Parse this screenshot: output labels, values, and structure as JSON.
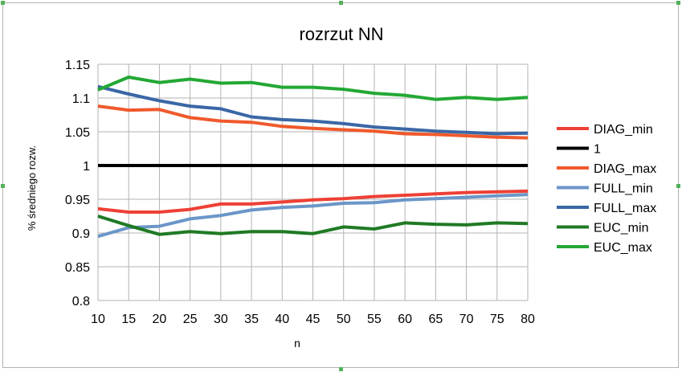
{
  "chart_data": {
    "type": "line",
    "title": "rozrzut NN",
    "xlabel": "n",
    "ylabel": "% średniego rozw.",
    "x": [
      10,
      15,
      20,
      25,
      30,
      35,
      40,
      45,
      50,
      55,
      60,
      65,
      70,
      75,
      80
    ],
    "ylim": [
      0.8,
      1.15
    ],
    "yticks": [
      "0.8",
      "0.85",
      "0.9",
      "0.95",
      "1",
      "1.05",
      "1.1",
      "1.15"
    ],
    "yticks_values": [
      0.8,
      0.85,
      0.9,
      0.95,
      1.0,
      1.05,
      1.1,
      1.15
    ],
    "grid": true,
    "legend_position": "right",
    "series": [
      {
        "name": "DIAG_min",
        "color": "#ee4035",
        "values": [
          0.936,
          0.931,
          0.931,
          0.935,
          0.943,
          0.943,
          0.946,
          0.949,
          0.951,
          0.954,
          0.956,
          0.958,
          0.96,
          0.961,
          0.962
        ]
      },
      {
        "name": "1",
        "color": "#000000",
        "values": [
          1,
          1,
          1,
          1,
          1,
          1,
          1,
          1,
          1,
          1,
          1,
          1,
          1,
          1,
          1
        ]
      },
      {
        "name": "DIAG_max",
        "color": "#f0592c",
        "values": [
          1.088,
          1.082,
          1.083,
          1.071,
          1.066,
          1.064,
          1.058,
          1.055,
          1.053,
          1.051,
          1.047,
          1.046,
          1.044,
          1.042,
          1.041
        ]
      },
      {
        "name": "FULL_min",
        "color": "#6b96c8",
        "values": [
          0.895,
          0.908,
          0.91,
          0.921,
          0.926,
          0.934,
          0.938,
          0.94,
          0.944,
          0.945,
          0.949,
          0.951,
          0.953,
          0.955,
          0.957
        ]
      },
      {
        "name": "FULL_max",
        "color": "#3a67a6",
        "values": [
          1.117,
          1.106,
          1.096,
          1.088,
          1.084,
          1.072,
          1.068,
          1.066,
          1.062,
          1.057,
          1.054,
          1.051,
          1.049,
          1.047,
          1.048
        ]
      },
      {
        "name": "EUC_min",
        "color": "#1f7a24",
        "values": [
          0.925,
          0.911,
          0.898,
          0.902,
          0.899,
          0.902,
          0.902,
          0.899,
          0.909,
          0.906,
          0.915,
          0.913,
          0.912,
          0.915,
          0.914
        ]
      },
      {
        "name": "EUC_max",
        "color": "#23a834",
        "values": [
          1.112,
          1.131,
          1.123,
          1.128,
          1.122,
          1.123,
          1.116,
          1.116,
          1.113,
          1.107,
          1.104,
          1.098,
          1.101,
          1.098,
          1.101
        ]
      }
    ]
  }
}
